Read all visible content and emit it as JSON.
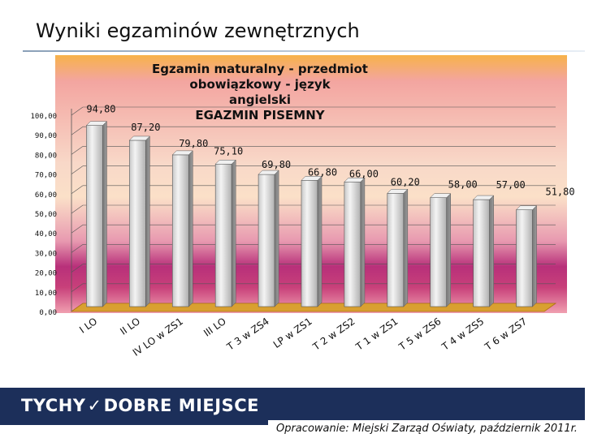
{
  "slide": {
    "title": "Wyniki egzaminów zewnętrznych",
    "logo_left": "TYCHY",
    "logo_right": "DOBRE MIEJSCE",
    "source": "Opracowanie: Miejski Zarząd Oświaty, październik 2011r."
  },
  "chart_data": {
    "type": "bar",
    "title_lines": [
      "Egzamin maturalny - przedmiot obowiązkowy - język",
      "angielski",
      "EGAZMIN PISEMNY"
    ],
    "categories": [
      "I LO",
      "II LO",
      "IV LO w ZS1",
      "III LO",
      "T 3 w ZS4",
      "LP w ZS1",
      "T 2 w ZS2",
      "T 1 w ZS1",
      "T 5 w ZS6",
      "T 4 w ZS5",
      "T 6 w ZS7"
    ],
    "values": [
      94.8,
      87.2,
      79.8,
      75.1,
      69.8,
      66.8,
      66.0,
      60.2,
      58.0,
      57.0,
      51.8
    ],
    "value_labels": [
      "94,80",
      "87,20",
      "79,80",
      "75,10",
      "69,80",
      "66,80",
      "66,00",
      "60,20",
      "58,00",
      "57,00",
      "51,80"
    ],
    "y_ticks": [
      "0,00",
      "10,00",
      "20,00",
      "30,00",
      "40,00",
      "50,00",
      "60,00",
      "70,00",
      "80,00",
      "90,00",
      "100,00"
    ],
    "ylim": [
      0,
      100
    ],
    "xlabel": "",
    "ylabel": "",
    "grid": true,
    "legend": "none",
    "colors": {
      "bar_front": "#dcdcdc",
      "bar_side": "#8a8a8a",
      "bar_top": "#f2f2f2"
    }
  }
}
